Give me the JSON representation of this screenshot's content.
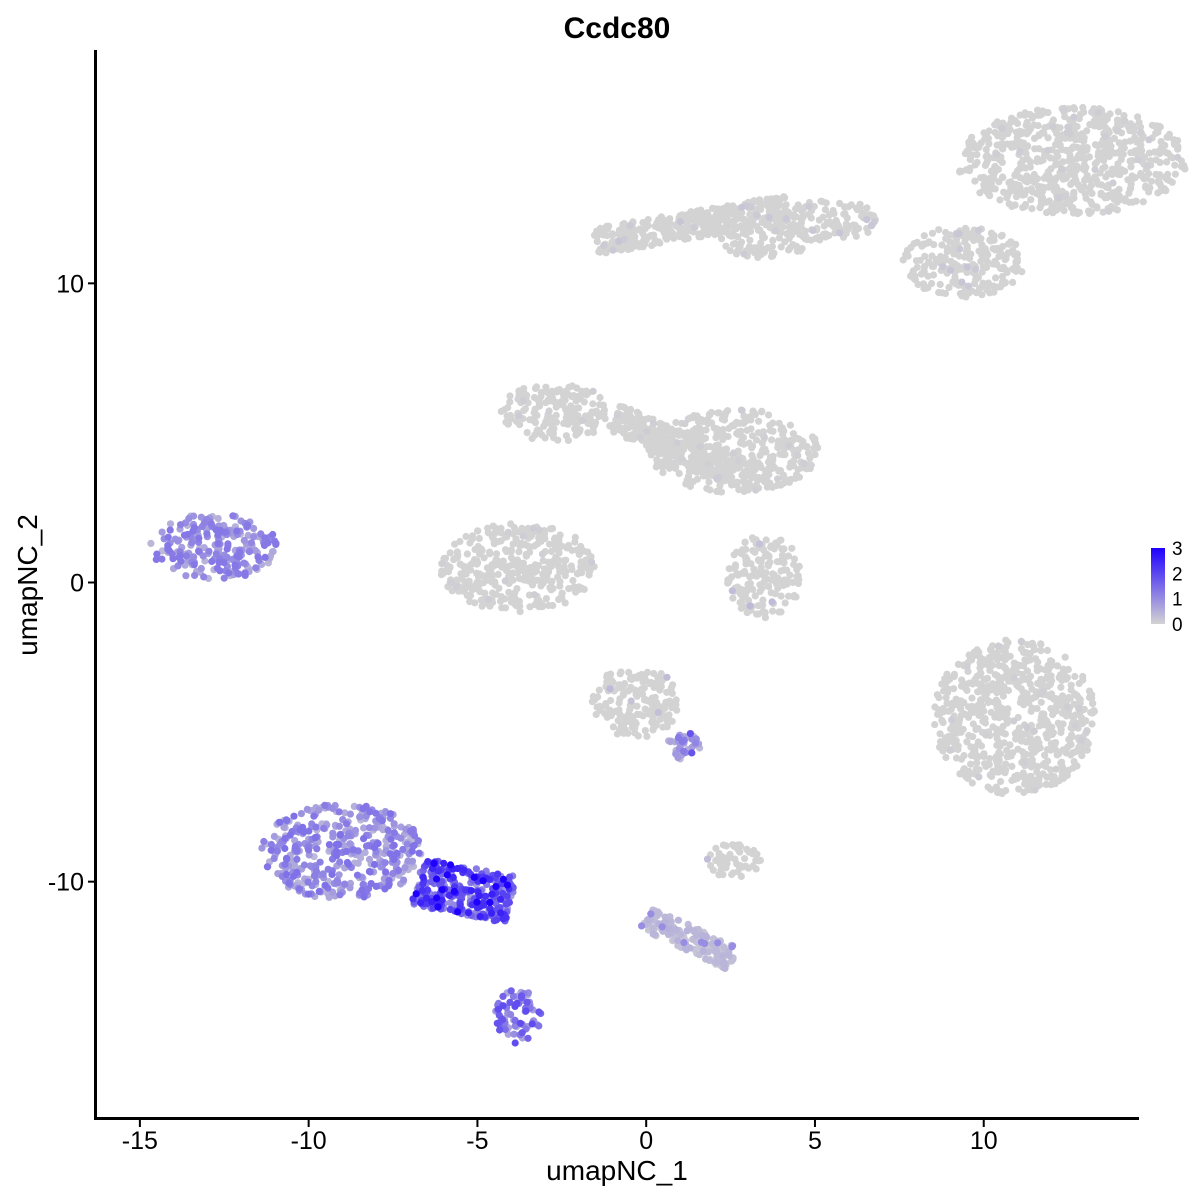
{
  "chart_data": {
    "type": "scatter",
    "title": "Ccdc80",
    "xlabel": "umapNC_1",
    "ylabel": "umapNC_2",
    "xlim": [
      -16.3,
      14.6
    ],
    "ylim": [
      -17.9,
      17.8
    ],
    "xticks": [
      -15,
      -10,
      -5,
      0,
      5,
      10
    ],
    "xtick_labels": [
      "-15",
      "-10",
      "-5",
      "0",
      "5",
      "10"
    ],
    "yticks": [
      10,
      0,
      -10
    ],
    "ytick_labels": [
      "10",
      "0",
      "-10"
    ],
    "grid": false,
    "legend": {
      "position": "right",
      "labels": [
        "3",
        "2",
        "1",
        "0"
      ],
      "values": [
        3,
        2,
        1,
        0
      ]
    },
    "colors": {
      "low": "#d3d3d3",
      "high": "#1f00ff"
    },
    "color_scale": {
      "min": 0,
      "max": 3
    },
    "clusters": [
      {
        "shape": "ellipse",
        "cx": 12.6,
        "cy": 14.1,
        "rx": 3.4,
        "ry": 1.8,
        "expr_mean": 0.0,
        "expr_max": 0.1
      },
      {
        "shape": "line",
        "x1": 4.2,
        "y1": 12.5,
        "x2": -1.5,
        "y2": 11.4,
        "w": 0.45,
        "expr_mean": 0.0,
        "expr_max": 0.2
      },
      {
        "shape": "ellipse",
        "cx": 5.4,
        "cy": 12.1,
        "rx": 1.5,
        "ry": 0.7,
        "expr_mean": 0.0,
        "expr_max": 0.2
      },
      {
        "shape": "ellipse",
        "cx": 9.4,
        "cy": 10.7,
        "rx": 1.8,
        "ry": 1.2,
        "expr_mean": 0.0,
        "expr_max": 0.2
      },
      {
        "shape": "ellipse",
        "cx": 3.5,
        "cy": 11.4,
        "rx": 1.3,
        "ry": 0.6,
        "expr_mean": 0.0,
        "expr_max": 0.1
      },
      {
        "shape": "ellipse",
        "cx": -2.7,
        "cy": 5.7,
        "rx": 1.6,
        "ry": 1.0,
        "expr_mean": 0.0,
        "expr_max": 0.1
      },
      {
        "shape": "line",
        "x1": -1.0,
        "y1": 5.5,
        "x2": 2.7,
        "y2": 3.7,
        "w": 0.5,
        "expr_mean": 0.0,
        "expr_max": 0.1
      },
      {
        "shape": "ellipse",
        "cx": 2.6,
        "cy": 4.4,
        "rx": 2.5,
        "ry": 1.4,
        "expr_mean": 0.0,
        "expr_max": 0.1
      },
      {
        "shape": "ellipse",
        "cx": -3.8,
        "cy": 0.5,
        "rx": 2.3,
        "ry": 1.5,
        "expr_mean": 0.0,
        "expr_max": 0.1
      },
      {
        "shape": "ellipse",
        "cx": -12.8,
        "cy": 1.2,
        "rx": 1.9,
        "ry": 1.1,
        "expr_mean": 0.9,
        "expr_max": 1.3
      },
      {
        "shape": "ellipse",
        "cx": -9.0,
        "cy": -9.0,
        "rx": 2.4,
        "ry": 1.6,
        "expr_mean": 0.9,
        "expr_max": 1.4
      },
      {
        "shape": "line",
        "x1": -6.8,
        "y1": -10.0,
        "x2": -4.0,
        "y2": -10.6,
        "w": 0.8,
        "expr_mean": 1.6,
        "expr_max": 3.0
      },
      {
        "shape": "ellipse",
        "cx": -3.8,
        "cy": -14.5,
        "rx": 0.7,
        "ry": 0.9,
        "expr_mean": 1.4,
        "expr_max": 1.9
      },
      {
        "shape": "ellipse",
        "cx": -0.3,
        "cy": -4.0,
        "rx": 1.3,
        "ry": 1.2,
        "expr_mean": 0.0,
        "expr_max": 0.4
      },
      {
        "shape": "line",
        "x1": 1.0,
        "y1": -5.1,
        "x2": 1.3,
        "y2": -5.8,
        "w": 0.4,
        "expr_mean": 0.8,
        "expr_max": 1.8
      },
      {
        "shape": "ellipse",
        "cx": 10.9,
        "cy": -4.5,
        "rx": 2.4,
        "ry": 2.6,
        "expr_mean": 0.0,
        "expr_max": 0.1
      },
      {
        "shape": "line",
        "x1": 0.0,
        "y1": -11.2,
        "x2": 2.6,
        "y2": -12.6,
        "w": 0.4,
        "expr_mean": 0.3,
        "expr_max": 1.0
      },
      {
        "shape": "ellipse",
        "cx": 2.6,
        "cy": -9.3,
        "rx": 0.8,
        "ry": 0.6,
        "expr_mean": 0.0,
        "expr_max": 0.5
      },
      {
        "shape": "ellipse",
        "cx": 3.5,
        "cy": 0.2,
        "rx": 1.1,
        "ry": 1.4,
        "expr_mean": 0.0,
        "expr_max": 0.4
      }
    ]
  }
}
